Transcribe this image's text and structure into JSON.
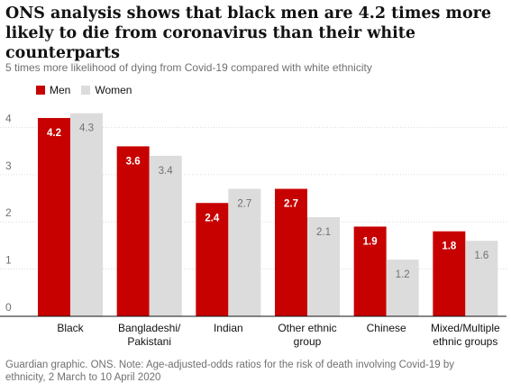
{
  "title": "ONS analysis shows that black men are 4.2 times more likely to die from coronavirus than their white counterparts",
  "subtitle": "5 times more likelihood of dying from Covid-19 compared with white ethnicity",
  "footer": {
    "line1": "Guardian graphic. ONS. Note: Age-adjusted-odds ratios for the risk of death involving Covid-19 by",
    "line2": "ethnicity, 2 March to 10 April 2020"
  },
  "colors": {
    "men": "#c70000",
    "women": "#dcdcdc",
    "grid": "#dcdcdc",
    "axis": "#121212"
  },
  "chart_data": {
    "type": "bar",
    "title": "ONS analysis shows that black men are 4.2 times more likely to die from coronavirus than their white counterparts",
    "subtitle": "5 times more likelihood of dying from Covid-19 compared with white ethnicity",
    "categories": [
      [
        "Black"
      ],
      [
        "Bangladeshi/",
        "Pakistani"
      ],
      [
        "Indian"
      ],
      [
        "Other ethnic",
        "group"
      ],
      [
        "Chinese"
      ],
      [
        "Mixed/Multiple",
        "ethnic groups"
      ]
    ],
    "series": [
      {
        "name": "Men",
        "values": [
          4.2,
          3.6,
          2.4,
          2.7,
          1.9,
          1.8
        ],
        "labels": [
          "4.2",
          "3.6",
          "2.4",
          "2.7",
          "1.9",
          "1.8"
        ]
      },
      {
        "name": "Women",
        "values": [
          4.3,
          3.4,
          2.7,
          2.1,
          1.2,
          1.6
        ],
        "labels": [
          "4.3",
          "3.4",
          "2.7",
          "2.1",
          "1.2",
          "1.6"
        ]
      }
    ],
    "yticks": [
      0,
      1,
      2,
      3,
      4
    ],
    "ylim": [
      0,
      4.6
    ],
    "grid": true,
    "legend": "top-left"
  }
}
